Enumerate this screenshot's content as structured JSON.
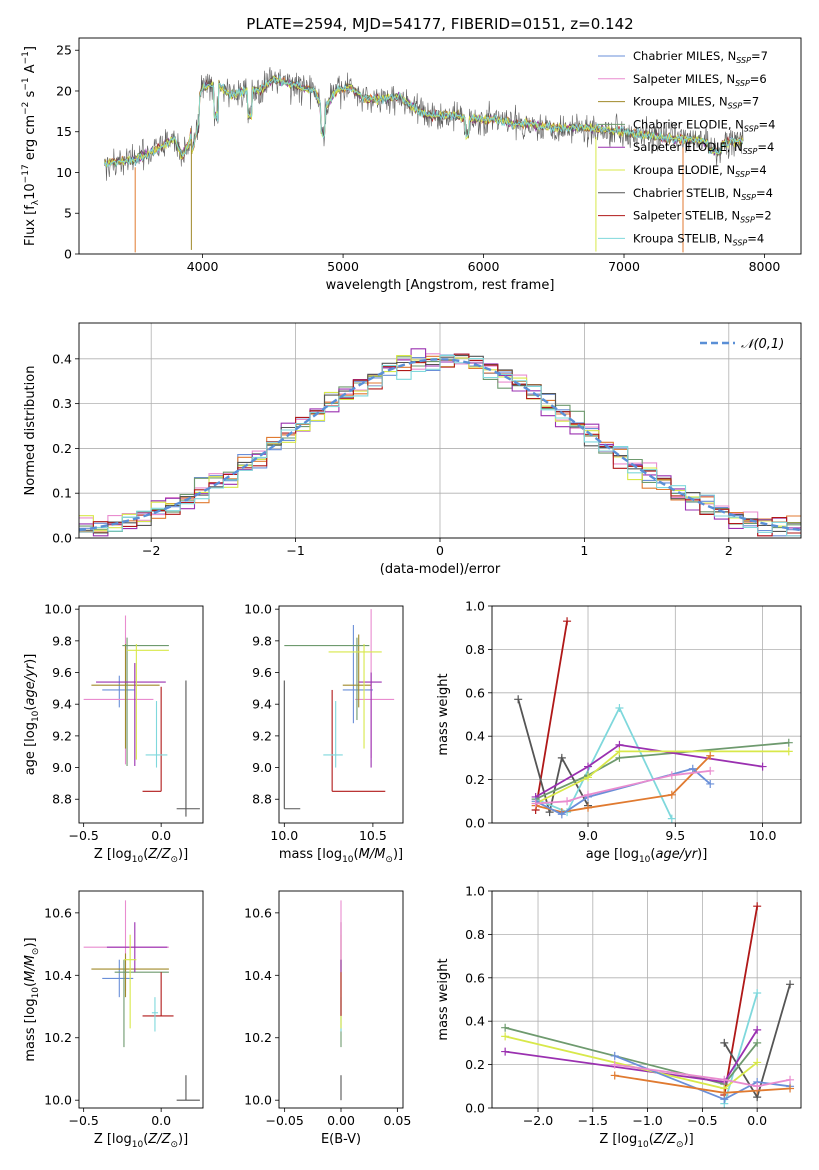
{
  "title": "PLATE=2594, MJD=54177, FIBERID=0151, z=0.142",
  "colors": {
    "chabrier_miles": "#6a8fd8",
    "salpeter_miles": "#e98ccf",
    "kroupa_miles": "#a08a2a",
    "chabrier_elodie": "#6e9a6e",
    "salpeter_elodie": "#9a30b0",
    "kroupa_elodie": "#d8e84a",
    "chabrier_stelib": "#555555",
    "salpeter_stelib": "#b01818",
    "kroupa_stelib": "#7fd8dc",
    "orange": "#e07a30",
    "normal": "#5a8fd6"
  },
  "chart_data": [
    {
      "id": "spectrum",
      "type": "line",
      "xlabel": "wavelength [Angstrom, rest frame]",
      "ylabel": "Flux [f_λ10^-17 erg cm^-2 s^-1 A^-1]",
      "xlim": [
        3120,
        8260
      ],
      "ylim": [
        0,
        26.5
      ],
      "xticks": [
        4000,
        5000,
        6000,
        7000,
        8000
      ],
      "yticks": [
        0,
        5,
        10,
        15,
        20,
        25
      ],
      "legend_position": "upper right",
      "legend": [
        {
          "text": "Chabrier MILES, N",
          "sub": "SSP",
          "tail": "=7",
          "color": "chabrier_miles"
        },
        {
          "text": "Salpeter MILES, N",
          "sub": "SSP",
          "tail": "=6",
          "color": "salpeter_miles"
        },
        {
          "text": "Kroupa MILES, N",
          "sub": "SSP",
          "tail": "=7",
          "color": "kroupa_miles"
        },
        {
          "text": "Chabrier ELODIE, N",
          "sub": "SSP",
          "tail": "=4",
          "color": "chabrier_elodie"
        },
        {
          "text": "Salpeter ELODIE, N",
          "sub": "SSP",
          "tail": "=4",
          "color": "salpeter_elodie"
        },
        {
          "text": "Kroupa ELODIE, N",
          "sub": "SSP",
          "tail": "=4",
          "color": "kroupa_elodie"
        },
        {
          "text": "Chabrier STELIB, N",
          "sub": "SSP",
          "tail": "=4",
          "color": "chabrier_stelib"
        },
        {
          "text": "Salpeter STELIB, N",
          "sub": "SSP",
          "tail": "=2",
          "color": "salpeter_stelib"
        },
        {
          "text": "Kroupa STELIB, N",
          "sub": "SSP",
          "tail": "=4",
          "color": "kroupa_stelib"
        }
      ],
      "envelope": [
        [
          3300,
          11.0
        ],
        [
          3400,
          11.3
        ],
        [
          3500,
          11.5
        ],
        [
          3600,
          12.2
        ],
        [
          3700,
          13.0
        ],
        [
          3800,
          14.2
        ],
        [
          3850,
          12.0
        ],
        [
          3900,
          13.5
        ],
        [
          3950,
          17.5
        ],
        [
          4000,
          20.5
        ],
        [
          4100,
          21.0
        ],
        [
          4200,
          19.5
        ],
        [
          4300,
          20.0
        ],
        [
          4400,
          20.0
        ],
        [
          4500,
          21.5
        ],
        [
          4600,
          21.0
        ],
        [
          4700,
          20.5
        ],
        [
          4800,
          20.0
        ],
        [
          4860,
          17.5
        ],
        [
          4950,
          20.0
        ],
        [
          5050,
          20.5
        ],
        [
          5150,
          19.0
        ],
        [
          5250,
          19.0
        ],
        [
          5400,
          19.3
        ],
        [
          5500,
          18.0
        ],
        [
          5600,
          17.0
        ],
        [
          5700,
          17.0
        ],
        [
          5800,
          17.0
        ],
        [
          5900,
          16.5
        ],
        [
          6000,
          16.5
        ],
        [
          6100,
          16.5
        ],
        [
          6200,
          16.0
        ],
        [
          6300,
          16.0
        ],
        [
          6500,
          15.5
        ],
        [
          6700,
          15.5
        ],
        [
          6900,
          15.2
        ],
        [
          7100,
          14.8
        ],
        [
          7300,
          14.2
        ],
        [
          7500,
          14.0
        ],
        [
          7700,
          13.5
        ],
        [
          7850,
          14.0
        ]
      ],
      "absorption_dips": [
        [
          3520,
          0.2
        ],
        [
          3920,
          0.5
        ],
        [
          6800,
          0.3
        ],
        [
          7420,
          0.2
        ]
      ]
    },
    {
      "id": "residuals",
      "type": "line",
      "xlabel": "(data-model)/error",
      "ylabel": "Normed distribution",
      "xlim": [
        -2.5,
        2.5
      ],
      "ylim": [
        0,
        0.48
      ],
      "xticks": [
        -2,
        -1,
        0,
        1,
        2
      ],
      "xtick_labels": [
        "−2",
        "−1",
        "0",
        "1",
        "2"
      ],
      "yticks": [
        0.0,
        0.1,
        0.2,
        0.3,
        0.4
      ],
      "ytick_labels": [
        "0.0",
        "0.1",
        "0.2",
        "0.3",
        "0.4"
      ],
      "grid": true,
      "legend_label": "𝒩(0,1)",
      "legend_position": "upper right",
      "bin_width": 0.1,
      "normal_mean": 0,
      "normal_sd": 1
    },
    {
      "id": "age_vs_Z",
      "type": "scatter",
      "xlabel": "Z [log10(Z/Z⊙)]",
      "ylabel": "age [log10(age/yr)]",
      "xlim": [
        -0.53,
        0.27
      ],
      "ylim": [
        8.65,
        10.02
      ],
      "xticks": [
        -0.5,
        0.0
      ],
      "xtick_labels": [
        "−0.5",
        "0.0"
      ],
      "yticks": [
        8.8,
        9.0,
        9.2,
        9.4,
        9.6,
        9.8,
        10.0
      ],
      "ytick_labels": [
        "8.8",
        "9.0",
        "9.2",
        "9.4",
        "9.6",
        "9.8",
        "10.0"
      ],
      "points": [
        {
          "c": "chabrier_miles",
          "x": -0.27,
          "xl": -0.38,
          "xh": -0.17,
          "y": 9.49,
          "yl": 9.38,
          "yh": 9.58
        },
        {
          "c": "salpeter_miles",
          "x": -0.23,
          "xl": -0.5,
          "xh": -0.05,
          "y": 9.43,
          "yl": 9.02,
          "yh": 9.96
        },
        {
          "c": "kroupa_miles",
          "x": -0.23,
          "xl": -0.45,
          "xh": -0.01,
          "y": 9.52,
          "yl": 9.12,
          "yh": 9.78
        },
        {
          "c": "chabrier_elodie",
          "x": -0.22,
          "xl": -0.25,
          "xh": 0.05,
          "y": 9.77,
          "yl": 9.01,
          "yh": 9.82
        },
        {
          "c": "salpeter_elodie",
          "x": -0.17,
          "xl": -0.42,
          "xh": 0.03,
          "y": 9.54,
          "yl": 9.01,
          "yh": 9.66
        },
        {
          "c": "kroupa_elodie",
          "x": -0.16,
          "xl": -0.22,
          "xh": 0.05,
          "y": 9.74,
          "yl": 9.05,
          "yh": 9.78
        },
        {
          "c": "chabrier_stelib",
          "x": 0.16,
          "xl": 0.1,
          "xh": 0.25,
          "y": 8.74,
          "yl": 8.69,
          "yh": 9.55
        },
        {
          "c": "salpeter_stelib",
          "x": 0.0,
          "xl": -0.12,
          "xh": 0.0,
          "y": 8.85,
          "yl": 8.85,
          "yh": 9.51
        },
        {
          "c": "kroupa_stelib",
          "x": -0.03,
          "xl": -0.1,
          "xh": 0.04,
          "y": 9.08,
          "yl": 9.0,
          "yh": 9.42
        }
      ]
    },
    {
      "id": "age_vs_mass",
      "type": "scatter",
      "xlabel": "mass [log10(M/M⊙)]",
      "ylabel": "",
      "xlim": [
        9.97,
        10.67
      ],
      "ylim": [
        8.65,
        10.02
      ],
      "xticks": [
        10.0,
        10.5
      ],
      "xtick_labels": [
        "10.0",
        "10.5"
      ],
      "yticks": [
        8.8,
        9.0,
        9.2,
        9.4,
        9.6,
        9.8,
        10.0
      ],
      "ytick_labels": [
        "8.8",
        "9.0",
        "9.2",
        "9.4",
        "9.6",
        "9.8",
        "10.0"
      ],
      "points": [
        {
          "c": "chabrier_miles",
          "x": 10.39,
          "xl": 10.33,
          "xh": 10.5,
          "y": 9.49,
          "yl": 9.28,
          "yh": 9.9
        },
        {
          "c": "salpeter_miles",
          "x": 10.49,
          "xl": 10.4,
          "xh": 10.62,
          "y": 9.43,
          "yl": 9.06,
          "yh": 10.0
        },
        {
          "c": "kroupa_miles",
          "x": 10.42,
          "xl": 10.33,
          "xh": 10.49,
          "y": 9.52,
          "yl": 9.38,
          "yh": 9.84
        },
        {
          "c": "chabrier_elodie",
          "x": 10.41,
          "xl": 10.0,
          "xh": 10.48,
          "y": 9.77,
          "yl": 9.3,
          "yh": 9.82
        },
        {
          "c": "salpeter_elodie",
          "x": 10.49,
          "xl": 10.42,
          "xh": 10.55,
          "y": 9.54,
          "yl": 9.0,
          "yh": 9.6
        },
        {
          "c": "kroupa_elodie",
          "x": 10.45,
          "xl": 10.25,
          "xh": 10.55,
          "y": 9.73,
          "yl": 9.12,
          "yh": 9.78
        },
        {
          "c": "chabrier_stelib",
          "x": 10.0,
          "xl": 10.0,
          "xh": 10.09,
          "y": 8.74,
          "yl": 8.74,
          "yh": 9.55
        },
        {
          "c": "salpeter_stelib",
          "x": 10.27,
          "xl": 10.27,
          "xh": 10.57,
          "y": 8.85,
          "yl": 8.85,
          "yh": 9.49
        },
        {
          "c": "kroupa_stelib",
          "x": 10.29,
          "xl": 10.22,
          "xh": 10.33,
          "y": 9.08,
          "yl": 9.0,
          "yh": 9.42
        }
      ]
    },
    {
      "id": "weight_vs_age",
      "type": "line",
      "xlabel": "age [log10(age/yr)]",
      "ylabel": "mass weight",
      "xlim": [
        8.45,
        10.22
      ],
      "ylim": [
        0,
        1.0
      ],
      "xticks": [
        9.0,
        9.5,
        10.0
      ],
      "xtick_labels": [
        "9.0",
        "9.5",
        "10.0"
      ],
      "yticks": [
        0.0,
        0.2,
        0.4,
        0.6,
        0.8,
        1.0
      ],
      "ytick_labels": [
        "0.0",
        "0.2",
        "0.4",
        "0.6",
        "0.8",
        "1.0"
      ],
      "grid": true,
      "series": [
        {
          "c": "salpeter_stelib",
          "x": [
            8.7,
            8.88
          ],
          "y": [
            0.06,
            0.93
          ]
        },
        {
          "c": "chabrier_stelib",
          "x": [
            8.6,
            8.78,
            8.85,
            9.0
          ],
          "y": [
            0.57,
            0.05,
            0.3,
            0.08
          ]
        },
        {
          "c": "kroupa_stelib",
          "x": [
            8.7,
            8.88,
            9.18,
            9.48
          ],
          "y": [
            0.11,
            0.05,
            0.53,
            0.02
          ]
        },
        {
          "c": "chabrier_elodie",
          "x": [
            8.7,
            9.0,
            9.18,
            10.15
          ],
          "y": [
            0.11,
            0.22,
            0.3,
            0.37
          ]
        },
        {
          "c": "salpeter_elodie",
          "x": [
            8.7,
            9.0,
            9.18,
            10.0
          ],
          "y": [
            0.12,
            0.26,
            0.36,
            0.26
          ]
        },
        {
          "c": "kroupa_elodie",
          "x": [
            8.7,
            9.0,
            9.18,
            10.15
          ],
          "y": [
            0.09,
            0.21,
            0.33,
            0.33
          ]
        },
        {
          "c": "orange",
          "x": [
            8.7,
            8.85,
            9.0,
            9.48,
            9.7
          ],
          "y": [
            0.08,
            0.05,
            0.07,
            0.13,
            0.31
          ]
        },
        {
          "c": "chabrier_miles",
          "x": [
            8.7,
            8.85,
            9.0,
            9.6,
            9.7
          ],
          "y": [
            0.1,
            0.04,
            0.12,
            0.25,
            0.18
          ]
        },
        {
          "c": "salpeter_miles",
          "x": [
            8.7,
            8.88,
            9.0,
            9.48,
            9.7
          ],
          "y": [
            0.09,
            0.1,
            0.13,
            0.22,
            0.24
          ]
        }
      ]
    },
    {
      "id": "mass_vs_Z",
      "type": "scatter",
      "xlabel": "Z [log10(Z/Z⊙)]",
      "ylabel": "mass [log10(M/M⊙)]",
      "xlim": [
        -0.53,
        0.27
      ],
      "ylim": [
        9.975,
        10.67
      ],
      "xticks": [
        -0.5,
        0.0
      ],
      "xtick_labels": [
        "−0.5",
        "0.0"
      ],
      "yticks": [
        10.0,
        10.2,
        10.4,
        10.6
      ],
      "ytick_labels": [
        "10.0",
        "10.2",
        "10.4",
        "10.6"
      ],
      "points": [
        {
          "c": "chabrier_miles",
          "x": -0.27,
          "xl": -0.38,
          "xh": -0.18,
          "y": 10.39,
          "yl": 10.33,
          "yh": 10.45
        },
        {
          "c": "salpeter_miles",
          "x": -0.23,
          "xl": -0.5,
          "xh": 0.05,
          "y": 10.49,
          "yl": 10.35,
          "yh": 10.64
        },
        {
          "c": "kroupa_miles",
          "x": -0.23,
          "xl": -0.45,
          "xh": 0.05,
          "y": 10.42,
          "yl": 10.33,
          "yh": 10.47
        },
        {
          "c": "chabrier_elodie",
          "x": -0.24,
          "xl": -0.3,
          "xh": 0.05,
          "y": 10.41,
          "yl": 10.17,
          "yh": 10.45
        },
        {
          "c": "salpeter_elodie",
          "x": -0.17,
          "xl": -0.35,
          "xh": 0.04,
          "y": 10.49,
          "yl": 10.41,
          "yh": 10.57
        },
        {
          "c": "kroupa_elodie",
          "x": -0.2,
          "xl": -0.24,
          "xh": -0.16,
          "y": 10.45,
          "yl": 10.23,
          "yh": 10.53
        },
        {
          "c": "chabrier_stelib",
          "x": 0.16,
          "xl": 0.1,
          "xh": 0.25,
          "y": 10.0,
          "yl": 10.0,
          "yh": 10.08
        },
        {
          "c": "salpeter_stelib",
          "x": 0.0,
          "xl": -0.12,
          "xh": 0.08,
          "y": 10.27,
          "yl": 10.27,
          "yh": 10.41
        },
        {
          "c": "kroupa_stelib",
          "x": -0.04,
          "xl": -0.06,
          "xh": -0.02,
          "y": 10.28,
          "yl": 10.22,
          "yh": 10.33
        }
      ]
    },
    {
      "id": "mass_vs_EBV",
      "type": "scatter",
      "xlabel": "E(B-V)",
      "ylabel": "",
      "xlim": [
        -0.055,
        0.055
      ],
      "ylim": [
        9.975,
        10.67
      ],
      "xticks": [
        -0.05,
        0.0,
        0.05
      ],
      "xtick_labels": [
        "−0.05",
        "0.00",
        "0.05"
      ],
      "yticks": [
        10.0,
        10.2,
        10.4,
        10.6
      ],
      "ytick_labels": [
        "10.0",
        "10.2",
        "10.4",
        "10.6"
      ],
      "points": [
        {
          "c": "chabrier_stelib",
          "x": 0,
          "yl": 10.0,
          "yh": 10.08
        },
        {
          "c": "chabrier_elodie",
          "x": 0,
          "yl": 10.17,
          "yh": 10.45
        },
        {
          "c": "kroupa_stelib",
          "x": 0,
          "yl": 10.22,
          "yh": 10.33
        },
        {
          "c": "kroupa_elodie",
          "x": 0,
          "yl": 10.23,
          "yh": 10.53
        },
        {
          "c": "salpeter_stelib",
          "x": 0,
          "yl": 10.27,
          "yh": 10.57
        },
        {
          "c": "salpeter_elodie",
          "x": 0,
          "yl": 10.41,
          "yh": 10.57
        },
        {
          "c": "salpeter_miles",
          "x": 0,
          "yl": 10.45,
          "yh": 10.64
        }
      ]
    },
    {
      "id": "weight_vs_Z",
      "type": "line",
      "xlabel": "Z [log10(Z/Z⊙)]",
      "ylabel": "mass weight",
      "xlim": [
        -2.42,
        0.4
      ],
      "ylim": [
        0,
        1.0
      ],
      "xticks": [
        -2.0,
        -1.5,
        -1.0,
        -0.5,
        0.0
      ],
      "xtick_labels": [
        "−2.0",
        "−1.5",
        "−1.0",
        "−0.5",
        "0.0"
      ],
      "yticks": [
        0.0,
        0.2,
        0.4,
        0.6,
        0.8,
        1.0
      ],
      "ytick_labels": [
        "0.0",
        "0.2",
        "0.4",
        "0.6",
        "0.8",
        "1.0"
      ],
      "grid": true,
      "series": [
        {
          "c": "salpeter_stelib",
          "x": [
            -0.3,
            0.0
          ],
          "y": [
            0.06,
            0.93
          ]
        },
        {
          "c": "chabrier_stelib",
          "x": [
            -0.3,
            0.0,
            0.3
          ],
          "y": [
            0.3,
            0.05,
            0.57
          ]
        },
        {
          "c": "kroupa_stelib",
          "x": [
            -0.3,
            0.0
          ],
          "y": [
            0.02,
            0.53
          ]
        },
        {
          "c": "chabrier_elodie",
          "x": [
            -2.3,
            -0.3,
            0.0
          ],
          "y": [
            0.37,
            0.11,
            0.3
          ]
        },
        {
          "c": "salpeter_elodie",
          "x": [
            -2.3,
            -0.3,
            0.0
          ],
          "y": [
            0.26,
            0.12,
            0.36
          ]
        },
        {
          "c": "kroupa_elodie",
          "x": [
            -2.3,
            -0.3,
            0.0
          ],
          "y": [
            0.33,
            0.09,
            0.21
          ]
        },
        {
          "c": "chabrier_miles",
          "x": [
            -1.3,
            -0.3,
            0.0,
            0.3
          ],
          "y": [
            0.24,
            0.04,
            0.12,
            0.1
          ]
        },
        {
          "c": "orange",
          "x": [
            -1.3,
            -0.3,
            0.0,
            0.3
          ],
          "y": [
            0.15,
            0.07,
            0.08,
            0.09
          ]
        },
        {
          "c": "salpeter_miles",
          "x": [
            -1.3,
            -0.3,
            0.0,
            0.3
          ],
          "y": [
            0.2,
            0.13,
            0.1,
            0.13
          ]
        }
      ]
    }
  ]
}
